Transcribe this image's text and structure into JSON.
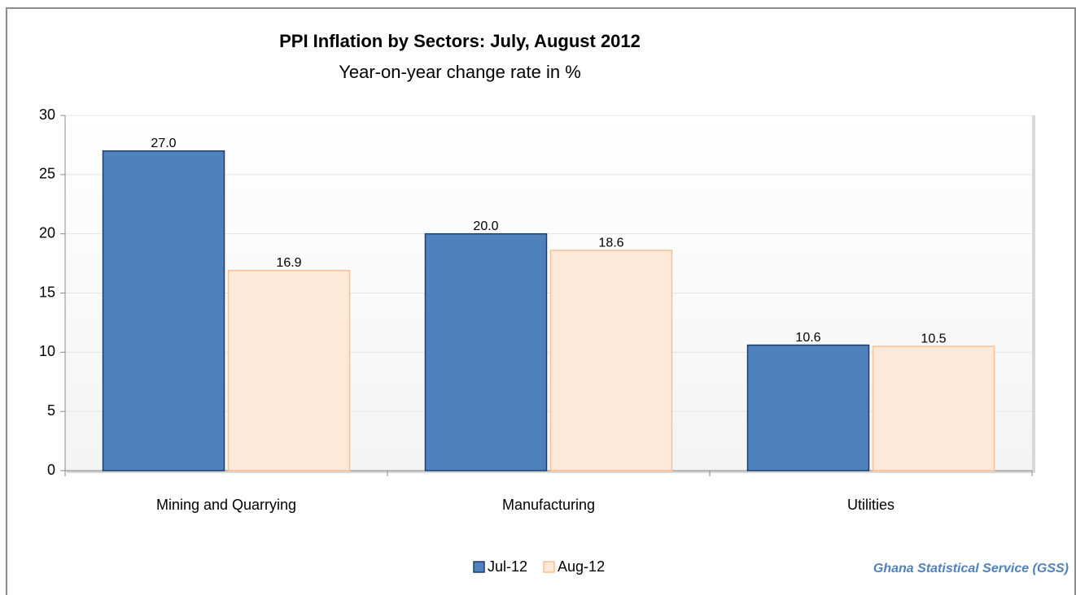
{
  "chart_data": {
    "type": "bar",
    "title": "PPI Inflation by Sectors: July, August 2012",
    "subtitle": "Year-on-year change rate in %",
    "categories": [
      "Mining and Quarrying",
      "Manufacturing",
      "Utilities"
    ],
    "series": [
      {
        "name": "Jul-12",
        "color": "#4f81bd",
        "values": [
          27.0,
          20.0,
          10.6
        ],
        "value_labels": [
          "27.0",
          "20.0",
          "10.6"
        ]
      },
      {
        "name": "Aug-12",
        "color": "#fde9d9",
        "values": [
          16.9,
          18.6,
          10.5
        ],
        "value_labels": [
          "16.9",
          "18.6",
          "10.5"
        ]
      }
    ],
    "ylim": [
      0,
      30
    ],
    "yticks": [
      0,
      5,
      10,
      15,
      20,
      25,
      30
    ],
    "grid": true,
    "legend": "bottom",
    "source": "Ghana Statistical Service (GSS)"
  }
}
